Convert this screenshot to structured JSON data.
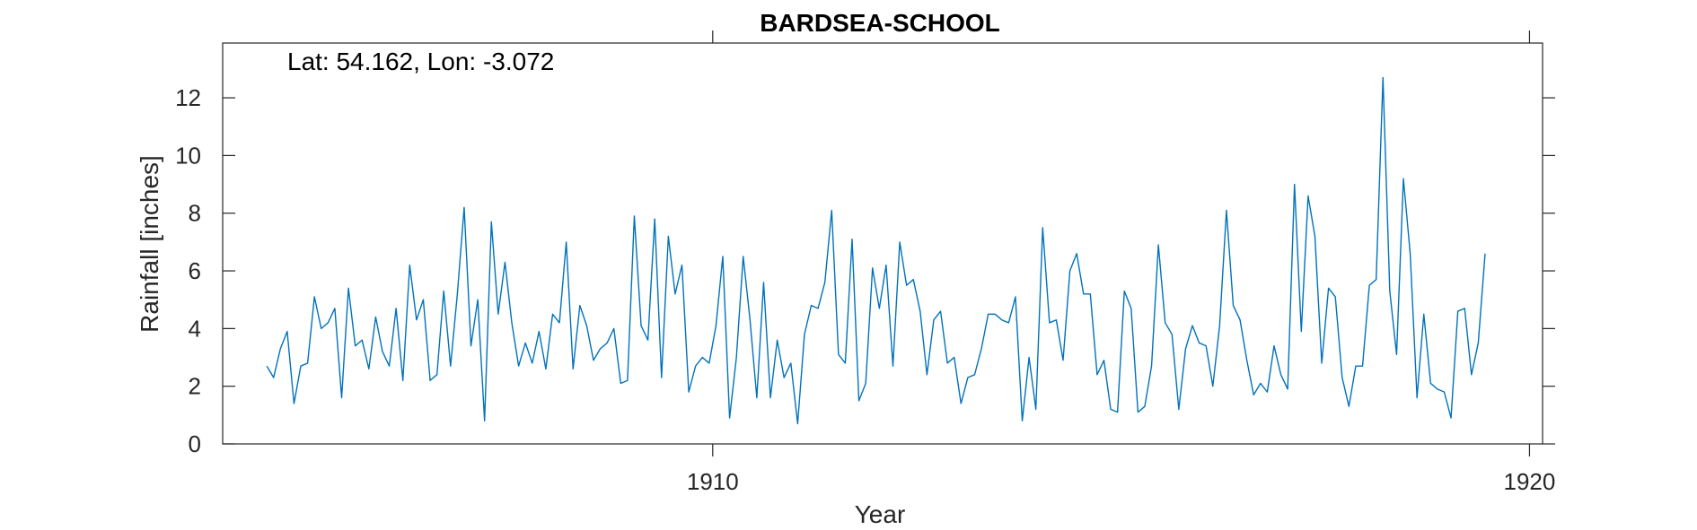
{
  "chart_data": {
    "type": "line",
    "title": "BARDSEA-SCHOOL",
    "annotation": "Lat: 54.162, Lon: -3.072",
    "xlabel": "Year",
    "ylabel": "Rainfall [inches]",
    "xlim": [
      1904,
      1920.16
    ],
    "ylim": [
      0,
      13.9
    ],
    "xticks": [
      {
        "value": 1910,
        "label": "1910"
      },
      {
        "value": 1920,
        "label": "1920"
      }
    ],
    "yticks": [
      {
        "value": 0,
        "label": "0"
      },
      {
        "value": 2,
        "label": "2"
      },
      {
        "value": 4,
        "label": "4"
      },
      {
        "value": 6,
        "label": "6"
      },
      {
        "value": 8,
        "label": "8"
      },
      {
        "value": 10,
        "label": "10"
      },
      {
        "value": 12,
        "label": "12"
      }
    ],
    "grid": false,
    "line_color": "#0072BD",
    "series": [
      {
        "x_start": 1904.54,
        "x_step": 0.08333,
        "values": [
          2.7,
          2.3,
          3.3,
          3.9,
          1.4,
          2.7,
          2.8,
          5.1,
          4.0,
          4.2,
          4.7,
          1.6,
          5.4,
          3.4,
          3.6,
          2.6,
          4.4,
          3.2,
          2.7,
          4.7,
          2.2,
          6.2,
          4.3,
          5.0,
          2.2,
          2.4,
          5.3,
          2.7,
          5.2,
          8.2,
          3.4,
          5.0,
          0.8,
          7.7,
          4.5,
          6.3,
          4.2,
          2.7,
          3.5,
          2.8,
          3.9,
          2.6,
          4.5,
          4.2,
          7.0,
          2.6,
          4.8,
          4.1,
          2.9,
          3.3,
          3.5,
          4.0,
          2.1,
          2.2,
          7.9,
          4.1,
          3.6,
          7.8,
          2.3,
          7.2,
          5.2,
          6.2,
          1.8,
          2.7,
          3.0,
          2.8,
          4.1,
          6.5,
          0.9,
          3.0,
          6.5,
          4.3,
          1.6,
          5.6,
          1.6,
          3.6,
          2.3,
          2.8,
          0.7,
          3.8,
          4.8,
          4.7,
          5.6,
          8.1,
          3.1,
          2.8,
          7.1,
          1.5,
          2.1,
          6.1,
          4.7,
          6.2,
          2.7,
          7.0,
          5.5,
          5.7,
          4.6,
          2.4,
          4.3,
          4.6,
          2.8,
          3.0,
          1.4,
          2.3,
          2.4,
          3.3,
          4.5,
          4.5,
          4.3,
          4.2,
          5.1,
          0.8,
          3.0,
          1.2,
          7.5,
          4.2,
          4.3,
          2.9,
          6.0,
          6.6,
          5.2,
          5.2,
          2.4,
          2.9,
          1.2,
          1.1,
          5.3,
          4.7,
          1.1,
          1.3,
          2.7,
          6.9,
          4.2,
          3.8,
          1.2,
          3.3,
          4.1,
          3.5,
          3.4,
          2.0,
          4.1,
          8.1,
          4.8,
          4.3,
          2.9,
          1.7,
          2.1,
          1.8,
          3.4,
          2.4,
          1.9,
          9.0,
          3.9,
          8.6,
          7.2,
          2.8,
          5.4,
          5.1,
          2.3,
          1.3,
          2.7,
          2.7,
          5.5,
          5.7,
          12.7,
          5.3,
          3.1,
          9.2,
          6.6,
          1.6,
          4.5,
          2.1,
          1.9,
          1.8,
          0.9,
          4.6,
          4.7,
          2.4,
          3.5,
          6.6
        ]
      }
    ]
  }
}
